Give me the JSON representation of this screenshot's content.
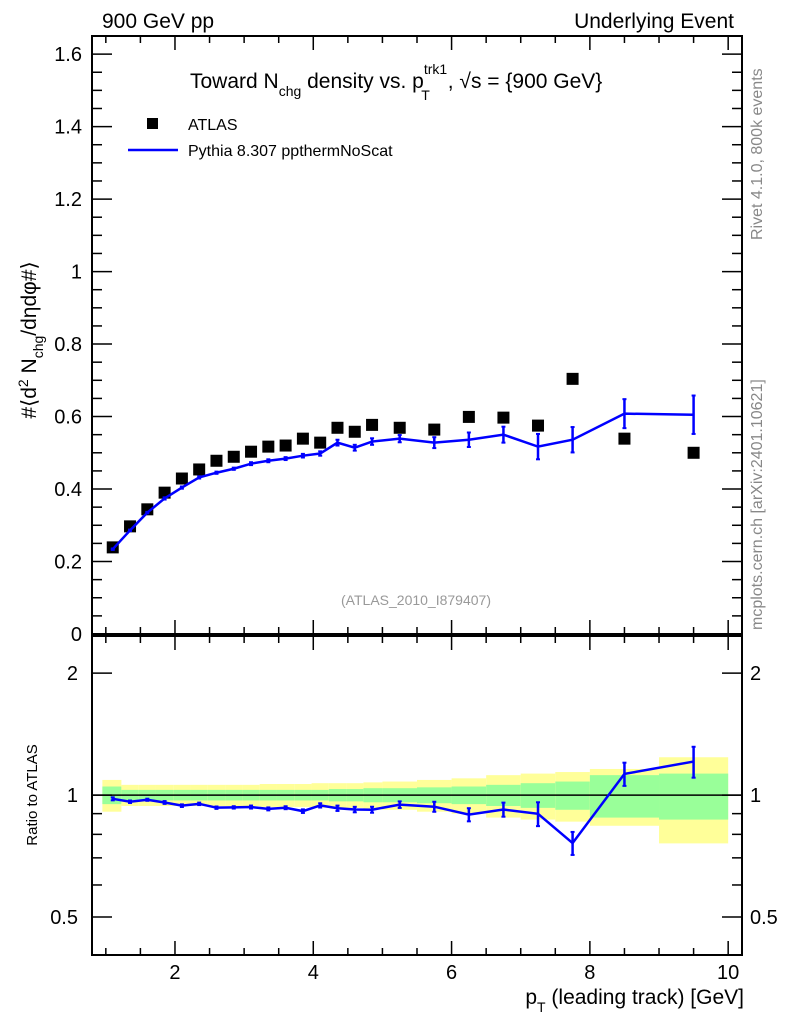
{
  "header": {
    "left": "900 GeV pp",
    "right": "Underlying Event"
  },
  "side_text": {
    "top": "Rivet 4.1.0,  800k events",
    "bottom": "mcplots.cern.ch [arXiv:2401.10621]"
  },
  "analysis_id": "(ATLAS_2010_I879407)",
  "title": {
    "p1": "Toward N",
    "p2": "chg",
    "p3": " density vs. p",
    "p4": "trk1",
    "p5": "T",
    "p6": ", √s = {900 GeV}"
  },
  "ylabel": {
    "p1": "#⟨d",
    "p2": "2",
    "p3": " N",
    "p4": "chg",
    "p5": "/dηdφ#⟩"
  },
  "ratio_ylabel": "Ratio to ATLAS",
  "xlabel": {
    "p1": "p",
    "p2": "T",
    "p3": " (leading track) [GeV]"
  },
  "legend": {
    "data": "ATLAS",
    "mc": "Pythia 8.307 ppthermNoScat"
  },
  "colors": {
    "mc": "#0000ff",
    "data": "#000000",
    "stat_band": "#99ff99",
    "total_band": "#ffff99"
  },
  "chart_data": {
    "type": "scatter",
    "xlim": [
      0.8,
      10.2
    ],
    "ylim": [
      0,
      1.65
    ],
    "ratio_ylim": [
      0.403,
      2.47
    ],
    "ratio_scale": "log",
    "x_ticks": [
      "2",
      "4",
      "6",
      "8",
      "10"
    ],
    "y_ticks": [
      "0",
      "0.2",
      "0.4",
      "0.6",
      "0.8",
      "1",
      "1.2",
      "1.4",
      "1.6"
    ],
    "ratio_ticks": [
      "0.5",
      "1",
      "2"
    ],
    "x": [
      1.1,
      1.35,
      1.6,
      1.85,
      2.1,
      2.35,
      2.6,
      2.85,
      3.1,
      3.35,
      3.6,
      3.85,
      4.1,
      4.35,
      4.6,
      4.85,
      5.25,
      5.75,
      6.25,
      6.75,
      7.25,
      7.75,
      8.5,
      9.5
    ],
    "bin_edges": [
      0.95,
      1.225,
      1.475,
      1.725,
      1.975,
      2.225,
      2.475,
      2.725,
      2.975,
      3.225,
      3.475,
      3.725,
      3.975,
      4.225,
      4.475,
      4.725,
      5.0,
      5.5,
      6.0,
      6.5,
      7.0,
      7.5,
      8.0,
      9.0,
      10.0
    ],
    "series": [
      {
        "name": "ATLAS",
        "values": [
          0.239,
          0.297,
          0.344,
          0.39,
          0.429,
          0.454,
          0.478,
          0.489,
          0.503,
          0.517,
          0.52,
          0.539,
          0.528,
          0.569,
          0.558,
          0.577,
          0.569,
          0.564,
          0.599,
          0.597,
          0.575,
          0.704,
          0.539,
          0.5
        ],
        "stat_rel": [
          0.05,
          0.03,
          0.03,
          0.03,
          0.03,
          0.03,
          0.03,
          0.03,
          0.03,
          0.03,
          0.03,
          0.03,
          0.03,
          0.035,
          0.035,
          0.04,
          0.04,
          0.045,
          0.05,
          0.06,
          0.07,
          0.08,
          0.12,
          0.13
        ],
        "total_rel": [
          0.09,
          0.06,
          0.06,
          0.06,
          0.06,
          0.06,
          0.06,
          0.06,
          0.06,
          0.065,
          0.065,
          0.065,
          0.07,
          0.07,
          0.07,
          0.075,
          0.08,
          0.09,
          0.1,
          0.12,
          0.13,
          0.14,
          0.16,
          0.24
        ]
      },
      {
        "name": "Pythia 8.307 ppthermNoScat",
        "values": [
          0.234,
          0.286,
          0.335,
          0.374,
          0.404,
          0.432,
          0.445,
          0.456,
          0.47,
          0.478,
          0.484,
          0.492,
          0.498,
          0.528,
          0.514,
          0.531,
          0.539,
          0.528,
          0.536,
          0.55,
          0.517,
          0.536,
          0.608,
          0.605
        ],
        "errors": [
          0.002,
          0.002,
          0.002,
          0.003,
          0.003,
          0.003,
          0.003,
          0.003,
          0.004,
          0.004,
          0.004,
          0.005,
          0.006,
          0.008,
          0.008,
          0.009,
          0.01,
          0.015,
          0.02,
          0.022,
          0.035,
          0.035,
          0.04,
          0.053
        ]
      }
    ]
  }
}
